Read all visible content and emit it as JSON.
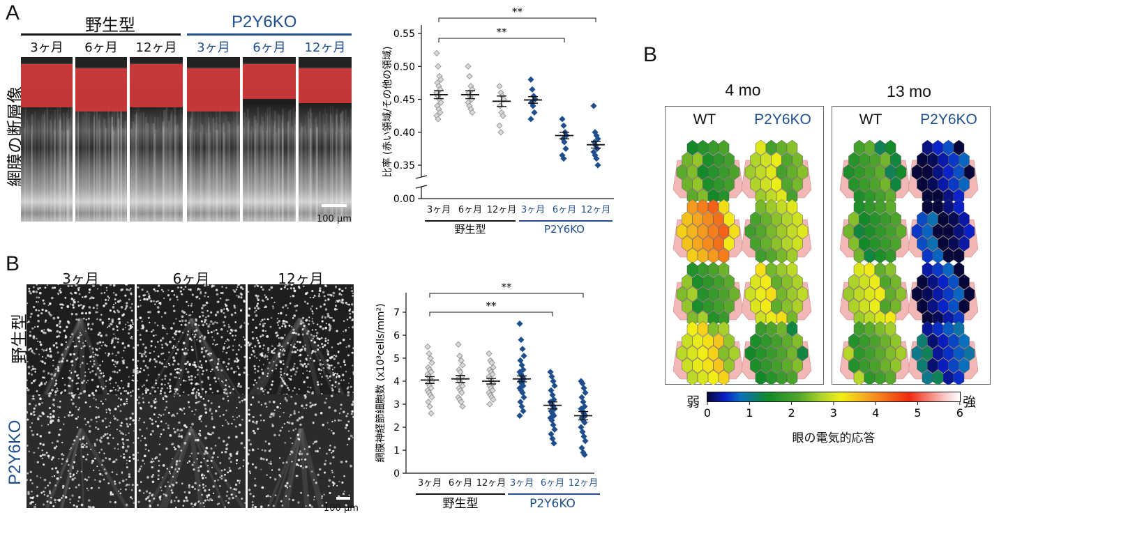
{
  "figure": {
    "panel_A_left_letter": "A",
    "panel_B_left_letter": "B",
    "panel_B_right_letter": "B",
    "wild_type": "野生型",
    "ko": "P2Y6KO",
    "ages": [
      "3ヶ月",
      "6ヶ月",
      "12ヶ月"
    ],
    "oct_ylabel": "網膜の断層像",
    "scale_label": "100 μm"
  },
  "chart_data": [
    {
      "type": "scatter",
      "panel": "A",
      "categories": [
        "3ヶ月",
        "6ヶ月",
        "12ヶ月",
        "3ヶ月",
        "6ヶ月",
        "12ヶ月"
      ],
      "group_labels": [
        "野生型",
        "P2Y6KO"
      ],
      "ylabel": "比率 (赤い領域/その他の領域)",
      "ylim": [
        0.3,
        0.55
      ],
      "axis_break": true,
      "yticks": [
        "0.55",
        "0.50",
        "0.45",
        "0.40",
        "0.35",
        "0.00"
      ],
      "means": [
        0.457,
        0.457,
        0.447,
        0.449,
        0.395,
        0.381
      ],
      "sems": [
        0.006,
        0.006,
        0.008,
        0.005,
        0.005,
        0.005
      ],
      "series": [
        {
          "name": "野生型",
          "values": [
            [
              0.52,
              0.5,
              0.485,
              0.48,
              0.475,
              0.47,
              0.465,
              0.46,
              0.455,
              0.45,
              0.445,
              0.44,
              0.435,
              0.43,
              0.425,
              0.42
            ],
            [
              0.5,
              0.485,
              0.47,
              0.465,
              0.46,
              0.455,
              0.45,
              0.445,
              0.44,
              0.435,
              0.43
            ],
            [
              0.47,
              0.46,
              0.455,
              0.45,
              0.44,
              0.43,
              0.425,
              0.41,
              0.4
            ]
          ]
        },
        {
          "name": "P2Y6KO",
          "values": [
            [
              0.48,
              0.465,
              0.455,
              0.45,
              0.445,
              0.44,
              0.43,
              0.42
            ],
            [
              0.42,
              0.41,
              0.4,
              0.395,
              0.39,
              0.385,
              0.375,
              0.365,
              0.36
            ],
            [
              0.44,
              0.4,
              0.395,
              0.39,
              0.385,
              0.38,
              0.375,
              0.37,
              0.365,
              0.36,
              0.35
            ]
          ]
        }
      ],
      "significance": [
        {
          "from": 0,
          "to": 4,
          "label": "**"
        },
        {
          "from": 0,
          "to": 5,
          "label": "**"
        }
      ]
    },
    {
      "type": "scatter",
      "panel": "B",
      "categories": [
        "3ヶ月",
        "6ヶ月",
        "12ヶ月",
        "3ヶ月",
        "6ヶ月",
        "12ヶ月"
      ],
      "group_labels": [
        "野生型",
        "P2Y6KO"
      ],
      "ylabel": "網膜神経節細胞数 (x10³cells/mm²)",
      "ylim": [
        0,
        7.5
      ],
      "yticks": [
        "0",
        "1",
        "2",
        "3",
        "4",
        "5",
        "6",
        "7"
      ],
      "means": [
        4.05,
        4.1,
        4.0,
        4.1,
        2.95,
        2.5
      ],
      "sems": [
        0.15,
        0.15,
        0.12,
        0.13,
        0.15,
        0.18
      ],
      "series": [
        {
          "name": "野生型",
          "values": [
            [
              5.5,
              5.2,
              5.0,
              4.8,
              4.6,
              4.5,
              4.4,
              4.3,
              4.2,
              4.1,
              4.0,
              3.9,
              3.8,
              3.7,
              3.6,
              3.5,
              3.4,
              3.3,
              3.1,
              2.9,
              2.6
            ],
            [
              5.6,
              5.1,
              4.9,
              4.7,
              4.5,
              4.4,
              4.2,
              4.1,
              4.0,
              3.9,
              3.8,
              3.7,
              3.6,
              3.5,
              3.3,
              3.2,
              3.1,
              2.9
            ],
            [
              5.2,
              4.9,
              4.8,
              4.6,
              4.5,
              4.4,
              4.3,
              4.2,
              4.1,
              4.0,
              3.9,
              3.8,
              3.7,
              3.6,
              3.5,
              3.4,
              3.3,
              3.2,
              3.0
            ]
          ]
        },
        {
          "name": "P2Y6KO",
          "values": [
            [
              6.5,
              5.8,
              5.4,
              5.1,
              4.9,
              4.7,
              4.5,
              4.4,
              4.3,
              4.2,
              4.1,
              4.0,
              3.9,
              3.8,
              3.7,
              3.6,
              3.5,
              3.3,
              3.1,
              2.9,
              2.7,
              2.5
            ],
            [
              4.4,
              4.2,
              4.0,
              3.8,
              3.6,
              3.4,
              3.2,
              3.1,
              3.0,
              2.9,
              2.8,
              2.7,
              2.6,
              2.5,
              2.4,
              2.3,
              2.1,
              1.9,
              1.7,
              1.5,
              1.3
            ],
            [
              4.0,
              3.9,
              3.7,
              3.5,
              3.3,
              3.1,
              2.9,
              2.8,
              2.7,
              2.6,
              2.5,
              2.4,
              2.3,
              2.2,
              2.0,
              1.8,
              1.6,
              1.4,
              1.1,
              0.9,
              0.8
            ]
          ]
        }
      ],
      "significance": [
        {
          "from": 0,
          "to": 4,
          "label": "**"
        },
        {
          "from": 0,
          "to": 5,
          "label": "**"
        }
      ]
    },
    {
      "type": "heatmap",
      "panel": "B-right",
      "groups": [
        "4 mo",
        "13 mo"
      ],
      "column_labels": [
        "WT",
        "P2Y6KO"
      ],
      "colorbar_label": "眼の電気的応答",
      "colorbar_low": "弱",
      "colorbar_high": "強",
      "colorbar_range": [
        0,
        6
      ],
      "colorbar_ticks": [
        "0",
        "1",
        "2",
        "3",
        "4",
        "5",
        "6"
      ],
      "maps": [
        {
          "group": "4 mo",
          "column": "WT",
          "rows": [
            2.0,
            3.8,
            2.1,
            3.0
          ]
        },
        {
          "group": "4 mo",
          "column": "P2Y6KO",
          "rows": [
            2.6,
            2.5,
            2.8,
            1.9
          ]
        },
        {
          "group": "13 mo",
          "column": "WT",
          "rows": [
            1.8,
            1.9,
            2.7,
            2.2
          ]
        },
        {
          "group": "13 mo",
          "column": "P2Y6KO",
          "rows": [
            0.2,
            0.3,
            0.2,
            0.7
          ]
        }
      ]
    }
  ]
}
